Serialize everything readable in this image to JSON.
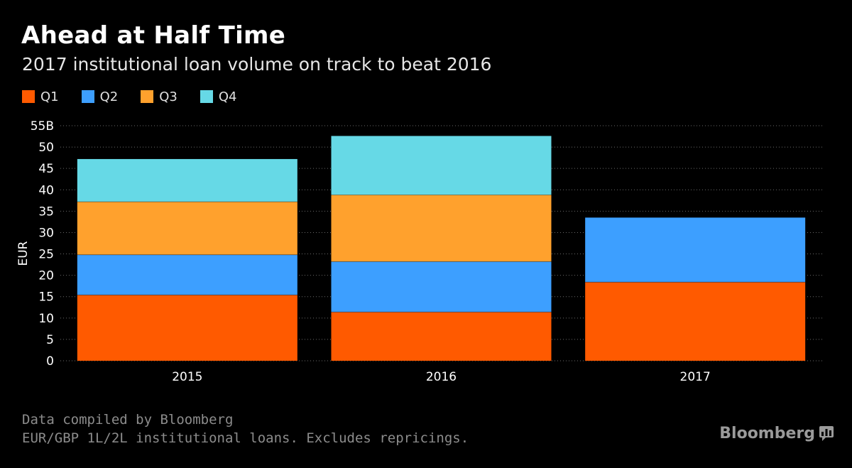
{
  "title": "Ahead at Half Time",
  "subtitle": "2017 institutional loan volume on track to beat 2016",
  "legend": [
    {
      "label": "Q1",
      "color": "#ff5a00"
    },
    {
      "label": "Q2",
      "color": "#3d9fff"
    },
    {
      "label": "Q3",
      "color": "#ffa12d"
    },
    {
      "label": "Q4",
      "color": "#66d9e6"
    }
  ],
  "footer": {
    "source": "Data compiled by Bloomberg",
    "note": "EUR/GBP 1L/2L institutional loans. Excludes repricings."
  },
  "brand": {
    "name": "Bloomberg",
    "icon": "bloomberg-chart-icon"
  },
  "chart_data": {
    "type": "bar",
    "stacked": true,
    "categories": [
      "2015",
      "2016",
      "2017"
    ],
    "series": [
      {
        "name": "Q1",
        "color": "#ff5a00",
        "values": [
          15.4,
          11.4,
          18.4
        ]
      },
      {
        "name": "Q2",
        "color": "#3d9fff",
        "values": [
          9.4,
          11.8,
          15.1
        ]
      },
      {
        "name": "Q3",
        "color": "#ffa12d",
        "values": [
          12.4,
          15.6,
          0
        ]
      },
      {
        "name": "Q4",
        "color": "#66d9e6",
        "values": [
          10.0,
          13.8,
          0
        ]
      }
    ],
    "ylabel": "EUR",
    "ylim": [
      0,
      55
    ],
    "yticks": [
      "0",
      "5",
      "10",
      "15",
      "20",
      "25",
      "30",
      "35",
      "40",
      "45",
      "50",
      "55B"
    ],
    "grid": true
  }
}
